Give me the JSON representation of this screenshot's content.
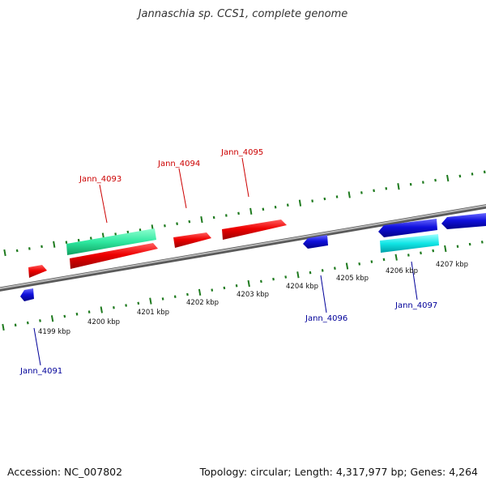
{
  "title": "Jannaschia sp. CCS1, complete genome",
  "footer": {
    "accession": "Accession: NC_007802",
    "summary": "Topology: circular; Length: 4,317,977 bp; Genes: 4,264"
  },
  "colors": {
    "forward_label": "#cc0000",
    "reverse_label": "#000099",
    "red_gene": "#ee0000",
    "blue_gene": "#1010dd",
    "green_gene": "#2ee8a0",
    "cyan_gene": "#11e6e6",
    "tick": "#1e7a1e",
    "backbone": "#8a8a8a"
  },
  "chart_data": {
    "type": "genome-map",
    "axis_unit": "kbp",
    "ticks": [
      {
        "kbp": 4199,
        "label": "4199 kbp"
      },
      {
        "kbp": 4200,
        "label": "4200 kbp"
      },
      {
        "kbp": 4201,
        "label": "4201 kbp"
      },
      {
        "kbp": 4202,
        "label": "4202 kbp"
      },
      {
        "kbp": 4203,
        "label": "4203 kbp"
      },
      {
        "kbp": 4204,
        "label": "4204 kbp"
      },
      {
        "kbp": 4205,
        "label": "4205 kbp"
      },
      {
        "kbp": 4206,
        "label": "4206 kbp"
      },
      {
        "kbp": 4207,
        "label": "4207 kbp"
      }
    ],
    "labels": [
      {
        "text": "Jann_4093",
        "strand": "forward",
        "kbp": 4200.7
      },
      {
        "text": "Jann_4094",
        "strand": "forward",
        "kbp": 4202.1
      },
      {
        "text": "Jann_4095",
        "strand": "forward",
        "kbp": 4203.0
      },
      {
        "text": "Jann_4091",
        "strand": "reverse",
        "kbp": 4198.8
      },
      {
        "text": "Jann_4096",
        "strand": "reverse",
        "kbp": 4204.7
      },
      {
        "text": "Jann_4097",
        "strand": "reverse",
        "kbp": 4206.3
      }
    ]
  }
}
